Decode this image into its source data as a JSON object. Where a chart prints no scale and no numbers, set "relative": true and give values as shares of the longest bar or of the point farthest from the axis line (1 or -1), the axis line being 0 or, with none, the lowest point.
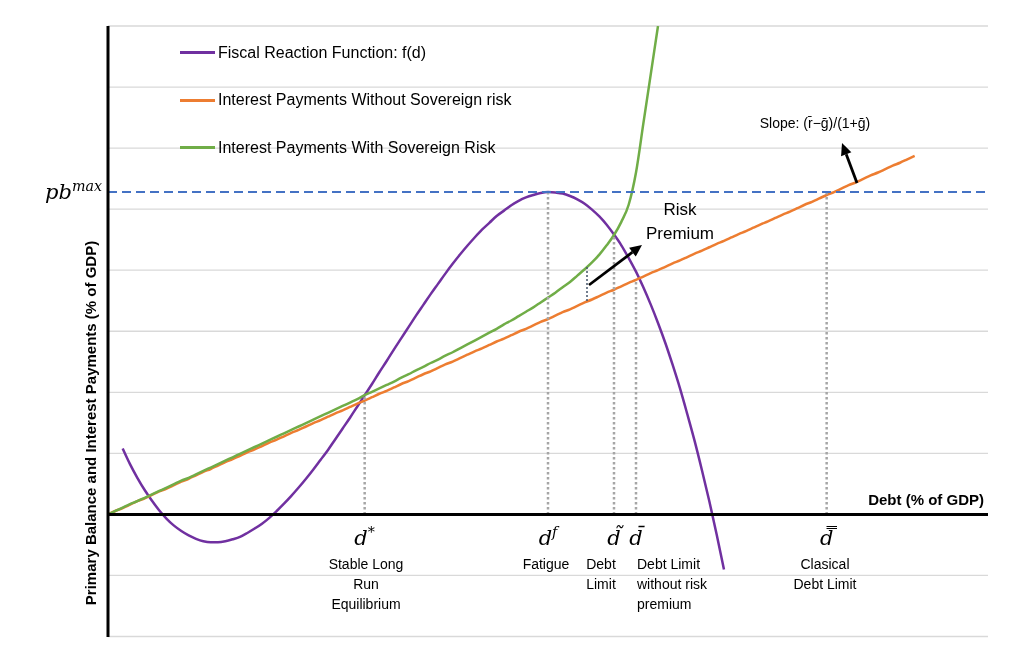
{
  "chart_data": {
    "type": "line",
    "relative": true,
    "xlabel": "Debt (% of GDP)",
    "ylabel": "Primary Balance and Interest Payments (% of GDP)",
    "categories": [
      null,
      null,
      null,
      null,
      null,
      null,
      null,
      null,
      null,
      null,
      null,
      null,
      null,
      null,
      null,
      null,
      null,
      null,
      null,
      null,
      null,
      null,
      null,
      null,
      null,
      null,
      null,
      null,
      null,
      null,
      null,
      null,
      null,
      null,
      null,
      "d$^{*}$",
      null,
      null,
      null,
      null,
      null,
      null,
      null,
      null,
      null,
      null,
      null,
      null,
      null,
      null,
      null,
      null,
      null,
      null,
      null,
      null,
      null,
      null,
      null,
      null,
      "d$^{f}$",
      null,
      null,
      null,
      null,
      null,
      null,
      null,
      null,
      "d̃",
      null,
      null,
      "d̄",
      null,
      null,
      null,
      null,
      null,
      null,
      null,
      null,
      null,
      null,
      null,
      null,
      null,
      null,
      null,
      null,
      null,
      null,
      null,
      null,
      null,
      null,
      null,
      null,
      null,
      "d̿",
      null,
      null,
      null,
      null,
      null,
      null,
      null,
      null,
      null,
      null,
      null,
      null,
      null,
      null,
      null,
      null,
      null,
      null,
      null,
      null,
      null,
      null
    ],
    "series": [
      {
        "name": "Fiscal Reaction Function: f(d)",
        "color": "#7030a0",
        "values": [
          null,
          null,
          0.135,
          0.103,
          0.075,
          0.05,
          0.028,
          0.008,
          -0.009,
          -0.023,
          -0.034,
          -0.043,
          -0.05,
          -0.055,
          -0.057,
          -0.057,
          -0.055,
          -0.051,
          -0.046,
          -0.038,
          -0.029,
          -0.019,
          -0.007,
          0.007,
          0.022,
          0.038,
          0.055,
          0.073,
          0.092,
          0.112,
          0.132,
          0.154,
          0.176,
          0.198,
          0.221,
          0.244,
          0.267,
          0.291,
          0.314,
          0.338,
          0.361,
          0.384,
          0.407,
          0.429,
          0.451,
          0.472,
          0.493,
          0.513,
          0.532,
          0.55,
          0.567,
          0.583,
          0.597,
          0.611,
          0.622,
          0.633,
          0.642,
          0.649,
          0.654,
          0.658,
          0.66,
          0.659,
          0.657,
          0.652,
          0.645,
          0.636,
          0.624,
          0.61,
          0.593,
          0.573,
          0.551,
          0.525,
          0.497,
          0.465,
          0.43,
          0.392,
          0.351,
          0.306,
          0.258,
          0.205,
          0.15,
          0.09,
          0.027,
          -0.041,
          -0.113,
          null,
          null,
          null,
          null,
          null,
          null,
          null,
          null,
          null,
          null,
          null,
          null,
          null,
          null,
          null,
          null,
          null,
          null,
          null,
          null,
          null,
          null,
          null,
          null,
          null,
          null,
          null,
          null,
          null,
          null,
          null,
          null,
          null,
          null,
          null,
          null
        ]
      },
      {
        "name": "Interest Payments Without Sovereign risk",
        "color": "#ed7d31",
        "values": [
          0,
          0.007,
          0.013,
          0.02,
          0.027,
          0.033,
          0.04,
          0.047,
          0.053,
          0.06,
          0.067,
          0.073,
          0.08,
          0.087,
          0.093,
          0.1,
          0.107,
          0.113,
          0.12,
          0.127,
          0.133,
          0.14,
          0.147,
          0.153,
          0.16,
          0.167,
          0.173,
          0.18,
          0.187,
          0.193,
          0.2,
          0.207,
          0.213,
          0.22,
          0.227,
          0.233,
          0.24,
          0.247,
          0.253,
          0.26,
          0.267,
          0.273,
          0.28,
          0.287,
          0.293,
          0.3,
          0.307,
          0.313,
          0.32,
          0.327,
          0.334,
          0.34,
          0.347,
          0.354,
          0.36,
          0.367,
          0.374,
          0.38,
          0.387,
          0.394,
          0.4,
          0.407,
          0.414,
          0.42,
          0.427,
          0.434,
          0.44,
          0.447,
          0.454,
          0.46,
          0.467,
          0.474,
          0.48,
          0.487,
          0.494,
          0.5,
          0.507,
          0.514,
          0.52,
          0.527,
          0.534,
          0.54,
          0.547,
          0.554,
          0.56,
          0.567,
          0.574,
          0.58,
          0.587,
          0.594,
          0.6,
          0.607,
          0.614,
          0.62,
          0.627,
          0.634,
          0.64,
          0.647,
          0.654,
          0.66,
          0.667,
          0.674,
          0.68,
          0.687,
          0.694,
          0.7,
          0.707,
          0.714,
          0.72,
          0.727,
          0.734,
          null,
          null,
          null,
          null,
          null,
          null,
          null,
          null,
          null,
          null
        ]
      },
      {
        "name": "Interest Payments With Sovereign Risk",
        "color": "#70ad47",
        "values": [
          0,
          0.007,
          0.014,
          0.021,
          0.027,
          0.034,
          0.041,
          0.048,
          0.055,
          0.062,
          0.069,
          0.075,
          0.082,
          0.089,
          0.096,
          0.103,
          0.11,
          0.117,
          0.124,
          0.131,
          0.138,
          0.145,
          0.152,
          0.159,
          0.166,
          0.173,
          0.18,
          0.187,
          0.194,
          0.201,
          0.208,
          0.215,
          0.222,
          0.229,
          0.236,
          0.244,
          0.251,
          0.258,
          0.265,
          0.272,
          0.28,
          0.287,
          0.295,
          0.302,
          0.31,
          0.317,
          0.325,
          0.332,
          0.34,
          0.348,
          0.356,
          0.364,
          0.372,
          0.38,
          0.389,
          0.397,
          0.406,
          0.415,
          0.424,
          0.434,
          0.444,
          0.454,
          0.465,
          0.476,
          0.489,
          0.502,
          0.516,
          0.532,
          0.551,
          0.572,
          0.599,
          0.634,
          0.7,
          0.8,
          0.9,
          1,
          null,
          null,
          null,
          null,
          null,
          null,
          null,
          null,
          null,
          null,
          null,
          null,
          null,
          null,
          null,
          null,
          null,
          null,
          null,
          null,
          null,
          null,
          null,
          null,
          null,
          null,
          null,
          null,
          null,
          null,
          null,
          null,
          null,
          null,
          null,
          null,
          null,
          null,
          null,
          null,
          null,
          null,
          null,
          null,
          null
        ]
      },
      {
        "x": [
          "d$^{*}$",
          "d$^{*}$"
        ],
        "values": [
          0,
          0.24
        ],
        "color": "#a6a6a6",
        "line_style": "dotted"
      },
      {
        "x": [
          "d$^{f}$",
          "d$^{f}$"
        ],
        "values": [
          0,
          0.66
        ],
        "color": "#a6a6a6",
        "line_style": "dotted"
      },
      {
        "x": [
          "d̃",
          "d̃"
        ],
        "values": [
          0,
          0.572
        ],
        "color": "#a6a6a6",
        "line_style": "dotted"
      },
      {
        "x": [
          "d̄",
          "d̄"
        ],
        "values": [
          0,
          0.48
        ],
        "color": "#a6a6a6",
        "line_style": "dotted"
      },
      {
        "x": [
          "d̿",
          "d̿"
        ],
        "values": [
          0,
          0.66
        ],
        "color": "#a6a6a6",
        "line_style": "dotted"
      }
    ],
    "ref_lines": [
      {
        "axis": "y",
        "value": 0.66,
        "label": "pb$^{max}$",
        "color": "#4472c4",
        "line_style": "dashed"
      }
    ],
    "annotations": [
      "Stable Long Run Equilibrium",
      "Fatigue",
      "Debt Limit",
      "Debt Limit without risk premium",
      "Clasical Debt Limit",
      "Risk Premium",
      "Slope: (r̄−ḡ)/(1+ḡ)"
    ],
    "grid": "y",
    "legend": "top left",
    "marker": "none"
  }
}
